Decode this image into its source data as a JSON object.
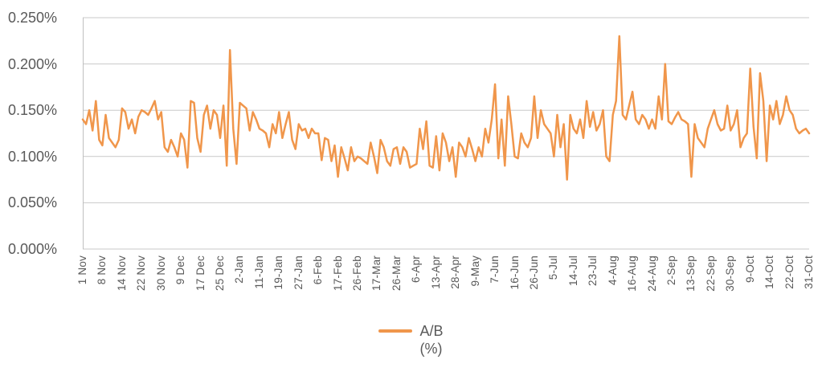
{
  "legend": {
    "line1": "A/B",
    "line2": "(%)"
  },
  "colors": {
    "series": "#F0964B",
    "grid": "#C9C9C9",
    "axis_line": "#BFBFBF",
    "axis_text": "#595959",
    "background": "#FFFFFF"
  },
  "chart_data": {
    "type": "line",
    "title": "",
    "xlabel": "",
    "ylabel": "",
    "y_unit": "percent",
    "ylim": [
      0,
      0.25
    ],
    "grid": "horizontal",
    "legend_position": "bottom",
    "y_ticks": [
      {
        "value": 0.0,
        "label": "0.000%"
      },
      {
        "value": 0.05,
        "label": "0.050%"
      },
      {
        "value": 0.1,
        "label": "0.100%"
      },
      {
        "value": 0.15,
        "label": "0.150%"
      },
      {
        "value": 0.2,
        "label": "0.200%"
      },
      {
        "value": 0.25,
        "label": "0.250%"
      }
    ],
    "x_tick_labels": [
      "1 Nov",
      "8 Nov",
      "14 Nov",
      "22 Nov",
      "30 Nov",
      "9 Dec",
      "17 Dec",
      "25 Dec",
      "2-Jan",
      "11-Jan",
      "19-Jan",
      "27-Jan",
      "6-Feb",
      "17-Feb",
      "26-Feb",
      "17-Mar",
      "26-Mar",
      "6-Apr",
      "13-Apr",
      "28-Apr",
      "9-May",
      "7-Jun",
      "16-Jun",
      "26-Jun",
      "5-Jul",
      "14-Jul",
      "23-Jul",
      "4-Aug",
      "16-Aug",
      "24-Aug",
      "2-Sep",
      "13-Sep",
      "22-Sep",
      "30-Sep",
      "9-Oct",
      "14-Oct",
      "22-Oct",
      "31-Oct"
    ],
    "series": [
      {
        "name": "A/B (%)",
        "color": "#F0964B",
        "values": [
          0.14,
          0.135,
          0.15,
          0.128,
          0.16,
          0.118,
          0.112,
          0.145,
          0.12,
          0.115,
          0.11,
          0.118,
          0.152,
          0.148,
          0.13,
          0.14,
          0.125,
          0.143,
          0.15,
          0.148,
          0.145,
          0.152,
          0.16,
          0.14,
          0.148,
          0.11,
          0.105,
          0.118,
          0.11,
          0.1,
          0.125,
          0.118,
          0.088,
          0.16,
          0.158,
          0.12,
          0.105,
          0.145,
          0.155,
          0.13,
          0.15,
          0.145,
          0.12,
          0.155,
          0.09,
          0.215,
          0.13,
          0.092,
          0.158,
          0.155,
          0.152,
          0.128,
          0.148,
          0.14,
          0.13,
          0.128,
          0.125,
          0.11,
          0.135,
          0.125,
          0.148,
          0.12,
          0.135,
          0.148,
          0.118,
          0.108,
          0.135,
          0.128,
          0.13,
          0.12,
          0.13,
          0.125,
          0.125,
          0.096,
          0.12,
          0.118,
          0.095,
          0.112,
          0.078,
          0.11,
          0.098,
          0.085,
          0.11,
          0.095,
          0.1,
          0.098,
          0.095,
          0.092,
          0.115,
          0.1,
          0.082,
          0.118,
          0.11,
          0.095,
          0.09,
          0.108,
          0.11,
          0.092,
          0.11,
          0.105,
          0.088,
          0.09,
          0.092,
          0.13,
          0.108,
          0.138,
          0.09,
          0.088,
          0.122,
          0.085,
          0.125,
          0.115,
          0.095,
          0.11,
          0.078,
          0.115,
          0.11,
          0.1,
          0.12,
          0.108,
          0.095,
          0.11,
          0.1,
          0.13,
          0.115,
          0.14,
          0.178,
          0.098,
          0.14,
          0.09,
          0.165,
          0.135,
          0.1,
          0.098,
          0.125,
          0.115,
          0.11,
          0.12,
          0.165,
          0.12,
          0.15,
          0.135,
          0.13,
          0.125,
          0.1,
          0.145,
          0.11,
          0.135,
          0.075,
          0.145,
          0.13,
          0.125,
          0.14,
          0.12,
          0.16,
          0.132,
          0.148,
          0.128,
          0.135,
          0.15,
          0.1,
          0.095,
          0.145,
          0.16,
          0.23,
          0.145,
          0.14,
          0.155,
          0.17,
          0.14,
          0.135,
          0.145,
          0.14,
          0.13,
          0.14,
          0.13,
          0.165,
          0.14,
          0.2,
          0.138,
          0.135,
          0.142,
          0.148,
          0.14,
          0.138,
          0.135,
          0.078,
          0.135,
          0.12,
          0.115,
          0.11,
          0.13,
          0.14,
          0.15,
          0.135,
          0.128,
          0.13,
          0.155,
          0.128,
          0.135,
          0.15,
          0.11,
          0.12,
          0.125,
          0.195,
          0.132,
          0.098,
          0.19,
          0.16,
          0.095,
          0.155,
          0.14,
          0.16,
          0.135,
          0.145,
          0.165,
          0.15,
          0.145,
          0.13,
          0.125,
          0.128,
          0.13,
          0.125
        ]
      }
    ]
  }
}
